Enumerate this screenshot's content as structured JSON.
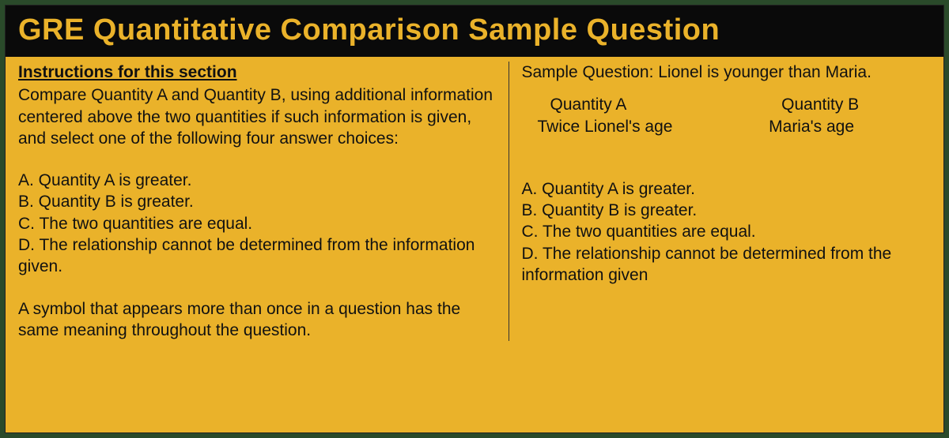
{
  "colors": {
    "bg_outer": "#2a4a2a",
    "bg_card": "#eab22a",
    "title_bg": "#0a0a0a",
    "title_fg": "#eab22a",
    "text": "#111111",
    "divider": "#333333"
  },
  "typography": {
    "title_fontsize": 38,
    "title_weight": 900,
    "body_fontsize": 21,
    "line_height": 1.3
  },
  "title": "GRE Quantitative Comparison Sample Question",
  "left": {
    "heading": "Instructions for this section",
    "intro": "Compare Quantity A and Quantity B, using additional information centered above the two quantities if such information is given, and select one of the following four answer choices:",
    "choices": [
      "A. Quantity A is greater.",
      "B. Quantity B is greater.",
      "C. The two quantities are equal.",
      "D. The relationship cannot be determined from the information given."
    ],
    "symbol_note": "A symbol that appears more than once in a question has the same meaning throughout the question."
  },
  "right": {
    "prompt": "Sample Question: Lionel is younger than Maria.",
    "quantity_a": {
      "label": "Quantity A",
      "value": "Twice Lionel's age"
    },
    "quantity_b": {
      "label": "Quantity B",
      "value": "Maria's age"
    },
    "choices": [
      "A. Quantity A is greater.",
      "B. Quantity B is greater.",
      "C. The two quantities are equal.",
      "D. The relationship cannot be determined from the information given"
    ]
  }
}
